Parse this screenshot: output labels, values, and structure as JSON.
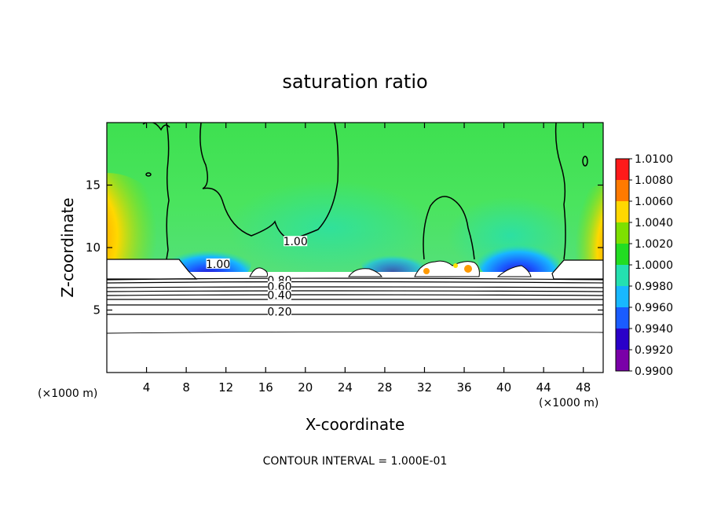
{
  "chart_data": {
    "type": "heatmap",
    "title": "saturation ratio",
    "xlabel": "X-coordinate",
    "ylabel": "Z-coordinate",
    "x_unit": "(×1000 m)",
    "xlim": [
      0,
      50
    ],
    "ylim": [
      0,
      20
    ],
    "x_ticks": [
      4,
      8,
      12,
      16,
      20,
      24,
      28,
      32,
      36,
      40,
      44,
      48
    ],
    "y_ticks": [
      5,
      10,
      15
    ],
    "colorbar": {
      "levels": [
        "0.9900",
        "0.9920",
        "0.9940",
        "0.9960",
        "0.9980",
        "1.0000",
        "1.0020",
        "1.0040",
        "1.0060",
        "1.0080",
        "1.0100"
      ],
      "colors": [
        "#7a00a8",
        "#2a00c8",
        "#1a5cff",
        "#18b8ff",
        "#24e0b0",
        "#22dd22",
        "#7ee000",
        "#ffd800",
        "#ff7a00",
        "#ff1a1a",
        "#ff8a9a"
      ],
      "range": [
        0.99,
        1.01
      ]
    },
    "contour_labels": [
      {
        "text": "1.00",
        "x": 11.2,
        "z": 8.5
      },
      {
        "text": "1.00",
        "x": 19.0,
        "z": 10.3
      },
      {
        "text": "0.80",
        "x": 17.4,
        "z": 7.2
      },
      {
        "text": "0.60",
        "x": 17.4,
        "z": 6.7
      },
      {
        "text": "0.40",
        "x": 17.4,
        "z": 6.0
      },
      {
        "text": "0.20",
        "x": 17.4,
        "z": 4.7
      }
    ],
    "footer": "CONTOUR INTERVAL = 1.000E-01"
  }
}
